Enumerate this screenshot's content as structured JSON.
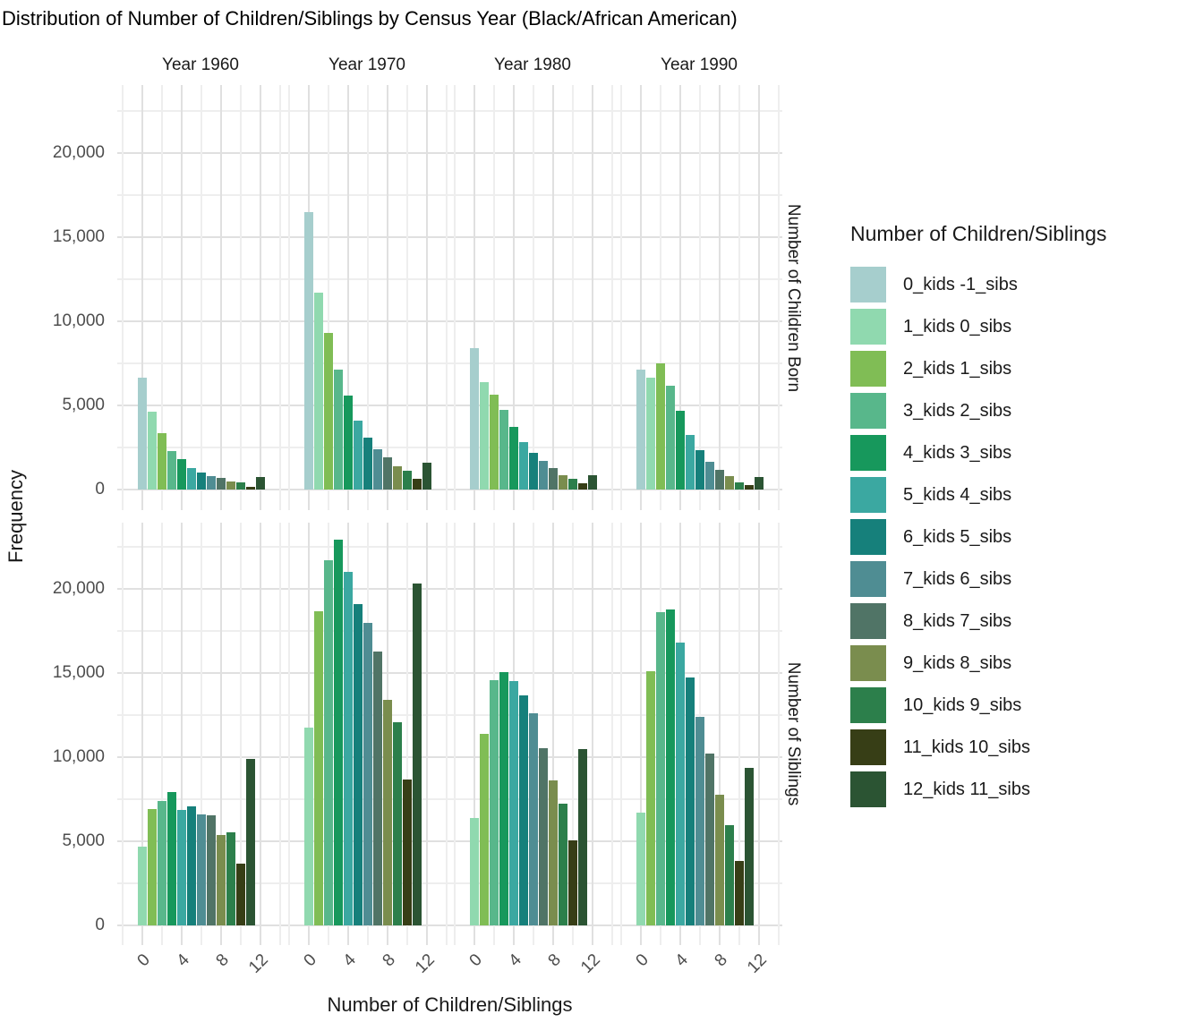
{
  "chart_data": {
    "type": "bar",
    "title": "Distribution of Number of Children/Siblings by Census Year (Black/African American)",
    "xlabel": "Number of Children/Siblings",
    "ylabel": "Frequency",
    "col_facets": [
      "Year 1960",
      "Year 1970",
      "Year 1980",
      "Year 1990"
    ],
    "row_facets": [
      "Number of Children Born",
      "Number of Siblings"
    ],
    "x_ticks": [
      {
        "label": "0",
        "value": 0
      },
      {
        "label": "4",
        "value": 4
      },
      {
        "label": "8",
        "value": 8
      },
      {
        "label": "12",
        "value": 12
      }
    ],
    "y_ticks": [
      {
        "label": "0",
        "value": 0
      },
      {
        "label": "5,000",
        "value": 5000
      },
      {
        "label": "10,000",
        "value": 10000
      },
      {
        "label": "15,000",
        "value": 15000
      },
      {
        "label": "20,000",
        "value": 20000
      }
    ],
    "grid": {
      "y_minor_step": 2500,
      "y_max_line": 22500,
      "x_lines": [
        -2,
        0,
        2,
        4,
        6,
        8,
        10,
        12,
        14
      ],
      "x_major": [
        0,
        4,
        8,
        12
      ]
    },
    "legend": {
      "title": "Number of Children/Siblings",
      "position": "right",
      "entries": [
        {
          "label": "0_kids -1_sibs",
          "color": "#a6cecd"
        },
        {
          "label": "1_kids 0_sibs",
          "color": "#90d9af"
        },
        {
          "label": "2_kids 1_sibs",
          "color": "#80bd55"
        },
        {
          "label": "3_kids 2_sibs",
          "color": "#58b78b"
        },
        {
          "label": "4_kids 3_sibs",
          "color": "#17985c"
        },
        {
          "label": "5_kids 4_sibs",
          "color": "#3ba8a1"
        },
        {
          "label": "6_kids 5_sibs",
          "color": "#16807b"
        },
        {
          "label": "7_kids 6_sibs",
          "color": "#4f8d93"
        },
        {
          "label": "8_kids 7_sibs",
          "color": "#507466"
        },
        {
          "label": "9_kids 8_sibs",
          "color": "#7a8d4e"
        },
        {
          "label": "10_kids 9_sibs",
          "color": "#2c7f4b"
        },
        {
          "label": "11_kids 10_sibs",
          "color": "#373e16"
        },
        {
          "label": "12_kids 11_sibs",
          "color": "#2b5433"
        }
      ]
    },
    "panels": [
      {
        "row": 0,
        "col": 0,
        "row_label": "Number of Children Born",
        "col_label": "Year 1960",
        "x_start": 0,
        "color_start": 0,
        "values": [
          6650,
          4650,
          3350,
          2300,
          1800,
          1250,
          1000,
          800,
          700,
          500,
          450,
          180,
          750
        ]
      },
      {
        "row": 0,
        "col": 1,
        "row_label": "Number of Children Born",
        "col_label": "Year 1970",
        "x_start": 0,
        "color_start": 0,
        "values": [
          16500,
          11700,
          9300,
          7150,
          5600,
          4100,
          3100,
          2400,
          1900,
          1400,
          1100,
          650,
          1600
        ]
      },
      {
        "row": 0,
        "col": 2,
        "row_label": "Number of Children Born",
        "col_label": "Year 1980",
        "x_start": 0,
        "color_start": 0,
        "values": [
          8400,
          6400,
          5650,
          4750,
          3700,
          2800,
          2200,
          1700,
          1250,
          850,
          650,
          350,
          850
        ]
      },
      {
        "row": 0,
        "col": 3,
        "row_label": "Number of Children Born",
        "col_label": "Year 1990",
        "x_start": 0,
        "color_start": 0,
        "values": [
          7150,
          6650,
          7500,
          6150,
          4700,
          3250,
          2350,
          1650,
          1150,
          800,
          450,
          270,
          750
        ]
      },
      {
        "row": 1,
        "col": 0,
        "row_label": "Number of Siblings",
        "col_label": "Year 1960",
        "x_start": 0,
        "color_start": 1,
        "values": [
          4700,
          6900,
          7400,
          7900,
          6850,
          7050,
          6600,
          6550,
          5350,
          5550,
          3650,
          9900
        ]
      },
      {
        "row": 1,
        "col": 1,
        "row_label": "Number of Siblings",
        "col_label": "Year 1970",
        "x_start": 0,
        "color_start": 1,
        "values": [
          11750,
          18650,
          21700,
          22900,
          21000,
          19100,
          18000,
          16300,
          13400,
          12050,
          8650,
          20300
        ]
      },
      {
        "row": 1,
        "col": 2,
        "row_label": "Number of Siblings",
        "col_label": "Year 1980",
        "x_start": 0,
        "color_start": 1,
        "values": [
          6400,
          11400,
          14550,
          15050,
          14500,
          13650,
          12600,
          10550,
          8600,
          7250,
          5050,
          10500
        ]
      },
      {
        "row": 1,
        "col": 3,
        "row_label": "Number of Siblings",
        "col_label": "Year 1990",
        "x_start": 0,
        "color_start": 1,
        "values": [
          6700,
          15100,
          18600,
          18800,
          16800,
          14750,
          12400,
          10200,
          7750,
          5950,
          3850,
          9350
        ]
      }
    ]
  }
}
